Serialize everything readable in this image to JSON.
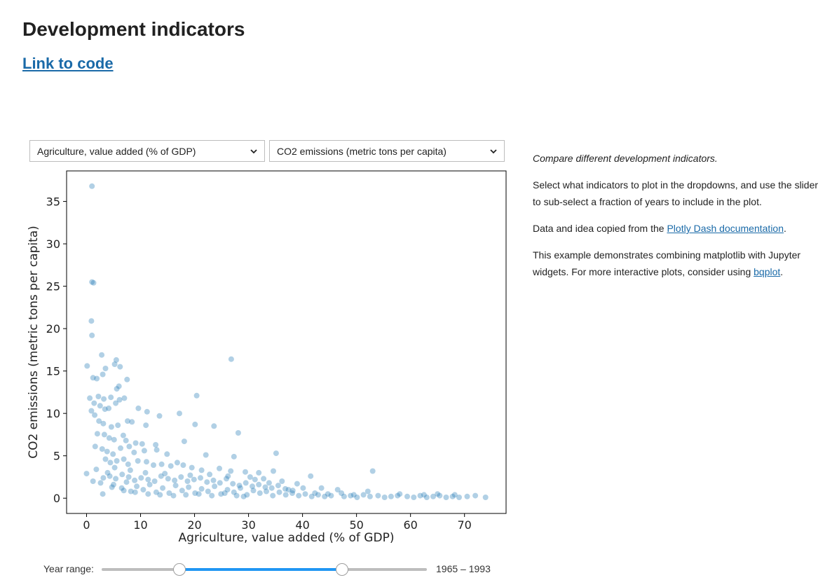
{
  "page": {
    "title": "Development indicators",
    "code_link": "Link to code"
  },
  "controls": {
    "x_indicator": "Agriculture, value added (% of GDP)",
    "y_indicator": "CO2 emissions (metric tons per capita)",
    "year_range_label": "Year range:",
    "year_range_value": "1965 – 1993",
    "year_start_fraction": 0.24,
    "year_end_fraction": 0.74
  },
  "sidebar": {
    "intro": "Compare different development indicators.",
    "p1": "Select what indicators to plot in the dropdowns, and use the slider to sub-select a fraction of years to include in the plot.",
    "p2_prefix": "Data and idea copied from the ",
    "p2_link": "Plotly Dash documentation",
    "p2_suffix": ".",
    "p3_prefix": "This example demonstrates combining matplotlib with Jupyter widgets. For more interactive plots, consider using ",
    "p3_link": "bqplot",
    "p3_suffix": "."
  },
  "chart_data": {
    "type": "scatter",
    "xlabel": "Agriculture, value added (% of GDP)",
    "ylabel": "CO2 emissions (metric tons per capita)",
    "xlim": [
      -3.7,
      77.7
    ],
    "ylim": [
      -1.8,
      38.6
    ],
    "xticks": [
      0,
      10,
      20,
      30,
      40,
      50,
      60,
      70
    ],
    "yticks": [
      0,
      5,
      10,
      15,
      20,
      25,
      30,
      35
    ],
    "marker_color": "#1f77b4",
    "marker_alpha": 0.35,
    "grid": false,
    "points": [
      [
        1.0,
        36.8
      ],
      [
        1.0,
        25.5
      ],
      [
        1.3,
        25.4
      ],
      [
        0.9,
        20.9
      ],
      [
        1.0,
        19.2
      ],
      [
        0.1,
        15.6
      ],
      [
        2.8,
        16.9
      ],
      [
        5.5,
        16.3
      ],
      [
        5.2,
        15.8
      ],
      [
        6.2,
        15.5
      ],
      [
        3.5,
        15.3
      ],
      [
        1.2,
        14.2
      ],
      [
        1.9,
        14.1
      ],
      [
        3.0,
        14.6
      ],
      [
        7.5,
        14.0
      ],
      [
        6.0,
        13.2
      ],
      [
        5.6,
        12.9
      ],
      [
        20.4,
        12.1
      ],
      [
        26.8,
        16.4
      ],
      [
        0.6,
        11.8
      ],
      [
        1.4,
        11.2
      ],
      [
        2.2,
        12.0
      ],
      [
        3.2,
        11.7
      ],
      [
        4.5,
        11.9
      ],
      [
        6.1,
        11.6
      ],
      [
        7.0,
        11.8
      ],
      [
        5.4,
        11.2
      ],
      [
        2.5,
        10.9
      ],
      [
        3.4,
        10.5
      ],
      [
        0.9,
        10.3
      ],
      [
        1.5,
        9.8
      ],
      [
        4.1,
        10.6
      ],
      [
        9.6,
        10.6
      ],
      [
        11.2,
        10.2
      ],
      [
        13.5,
        9.7
      ],
      [
        17.2,
        10.0
      ],
      [
        2.3,
        9.1
      ],
      [
        3.1,
        8.8
      ],
      [
        4.6,
        8.4
      ],
      [
        5.8,
        8.6
      ],
      [
        7.6,
        9.1
      ],
      [
        8.4,
        9.0
      ],
      [
        11.0,
        8.6
      ],
      [
        20.1,
        8.7
      ],
      [
        23.6,
        8.5
      ],
      [
        28.1,
        7.7
      ],
      [
        2.0,
        7.6
      ],
      [
        3.3,
        7.5
      ],
      [
        4.2,
        7.1
      ],
      [
        5.1,
        6.9
      ],
      [
        6.8,
        7.4
      ],
      [
        7.3,
        6.8
      ],
      [
        9.1,
        6.5
      ],
      [
        10.3,
        6.4
      ],
      [
        12.8,
        6.3
      ],
      [
        18.1,
        6.7
      ],
      [
        1.6,
        6.1
      ],
      [
        2.9,
        5.8
      ],
      [
        3.8,
        5.5
      ],
      [
        4.9,
        5.2
      ],
      [
        6.3,
        5.9
      ],
      [
        7.9,
        6.1
      ],
      [
        8.8,
        5.4
      ],
      [
        10.7,
        5.6
      ],
      [
        13.0,
        5.7
      ],
      [
        14.9,
        5.2
      ],
      [
        22.1,
        5.1
      ],
      [
        27.3,
        4.9
      ],
      [
        35.1,
        5.3
      ],
      [
        3.5,
        4.6
      ],
      [
        4.4,
        4.2
      ],
      [
        5.6,
        4.4
      ],
      [
        6.9,
        4.6
      ],
      [
        7.7,
        4.0
      ],
      [
        9.5,
        4.4
      ],
      [
        11.1,
        4.3
      ],
      [
        12.4,
        3.9
      ],
      [
        13.9,
        4.0
      ],
      [
        15.6,
        3.8
      ],
      [
        16.8,
        4.2
      ],
      [
        17.9,
        3.9
      ],
      [
        19.5,
        3.6
      ],
      [
        21.3,
        3.3
      ],
      [
        24.6,
        3.5
      ],
      [
        26.7,
        3.2
      ],
      [
        29.4,
        3.1
      ],
      [
        31.9,
        3.0
      ],
      [
        34.6,
        3.2
      ],
      [
        41.5,
        2.6
      ],
      [
        53.0,
        3.2
      ],
      [
        3.1,
        2.4
      ],
      [
        4.3,
        2.6
      ],
      [
        5.4,
        2.3
      ],
      [
        6.6,
        2.8
      ],
      [
        7.8,
        2.5
      ],
      [
        8.9,
        2.1
      ],
      [
        10.1,
        2.4
      ],
      [
        11.4,
        2.2
      ],
      [
        12.6,
        2.0
      ],
      [
        13.8,
        2.6
      ],
      [
        15.1,
        2.3
      ],
      [
        16.3,
        2.1
      ],
      [
        17.5,
        2.5
      ],
      [
        18.7,
        2.0
      ],
      [
        19.9,
        2.2
      ],
      [
        21.1,
        2.4
      ],
      [
        22.3,
        1.9
      ],
      [
        23.5,
        2.1
      ],
      [
        24.7,
        1.8
      ],
      [
        25.9,
        2.3
      ],
      [
        27.1,
        1.7
      ],
      [
        28.3,
        1.5
      ],
      [
        29.5,
        1.8
      ],
      [
        30.7,
        1.4
      ],
      [
        31.9,
        1.6
      ],
      [
        33.1,
        1.3
      ],
      [
        34.3,
        1.2
      ],
      [
        35.5,
        1.5
      ],
      [
        36.8,
        1.1
      ],
      [
        38.2,
        0.9
      ],
      [
        0.0,
        2.9
      ],
      [
        1.2,
        2.0
      ],
      [
        3.0,
        0.5
      ],
      [
        5.0,
        1.6
      ],
      [
        6.5,
        1.2
      ],
      [
        7.4,
        1.9
      ],
      [
        8.2,
        0.8
      ],
      [
        9.3,
        1.4
      ],
      [
        10.5,
        1.0
      ],
      [
        11.7,
        1.6
      ],
      [
        12.9,
        0.7
      ],
      [
        14.1,
        1.2
      ],
      [
        15.3,
        0.6
      ],
      [
        16.5,
        1.5
      ],
      [
        17.7,
        0.9
      ],
      [
        18.9,
        1.3
      ],
      [
        20.1,
        0.6
      ],
      [
        21.3,
        1.1
      ],
      [
        22.5,
        0.8
      ],
      [
        23.7,
        1.4
      ],
      [
        24.9,
        0.5
      ],
      [
        26.1,
        1.0
      ],
      [
        27.3,
        0.7
      ],
      [
        28.5,
        1.2
      ],
      [
        29.7,
        0.4
      ],
      [
        30.9,
        0.9
      ],
      [
        32.1,
        0.6
      ],
      [
        33.3,
        0.8
      ],
      [
        34.5,
        0.3
      ],
      [
        35.7,
        0.7
      ],
      [
        36.9,
        0.4
      ],
      [
        38.1,
        0.6
      ],
      [
        39.3,
        0.3
      ],
      [
        40.5,
        0.5
      ],
      [
        41.7,
        0.2
      ],
      [
        42.9,
        0.4
      ],
      [
        44.1,
        0.2
      ],
      [
        45.3,
        0.3
      ],
      [
        46.5,
        1.0
      ],
      [
        47.7,
        0.2
      ],
      [
        48.9,
        0.3
      ],
      [
        50.1,
        0.1
      ],
      [
        51.3,
        0.4
      ],
      [
        52.5,
        0.2
      ],
      [
        54.0,
        0.3
      ],
      [
        55.2,
        0.1
      ],
      [
        56.4,
        0.2
      ],
      [
        57.6,
        0.3
      ],
      [
        59.4,
        0.2
      ],
      [
        60.6,
        0.1
      ],
      [
        61.8,
        0.3
      ],
      [
        63.0,
        0.1
      ],
      [
        64.2,
        0.2
      ],
      [
        65.4,
        0.3
      ],
      [
        66.6,
        0.1
      ],
      [
        67.8,
        0.2
      ],
      [
        69.0,
        0.1
      ],
      [
        70.5,
        0.2
      ],
      [
        73.9,
        0.1
      ],
      [
        52.1,
        0.8
      ],
      [
        42.3,
        0.6
      ],
      [
        44.7,
        0.5
      ],
      [
        40.1,
        1.2
      ],
      [
        37.4,
        1.0
      ],
      [
        33.8,
        1.8
      ],
      [
        31.2,
        2.2
      ],
      [
        29.1,
        0.2
      ],
      [
        27.8,
        0.3
      ],
      [
        25.6,
        0.6
      ],
      [
        23.2,
        0.3
      ],
      [
        20.8,
        0.5
      ],
      [
        18.4,
        0.4
      ],
      [
        16.1,
        0.3
      ],
      [
        13.6,
        0.4
      ],
      [
        11.4,
        0.5
      ],
      [
        9.0,
        0.7
      ],
      [
        6.9,
        0.9
      ],
      [
        4.7,
        1.3
      ],
      [
        2.6,
        1.8
      ],
      [
        1.8,
        3.4
      ],
      [
        3.9,
        3.0
      ],
      [
        5.2,
        3.6
      ],
      [
        8.1,
        3.3
      ],
      [
        10.9,
        3.0
      ],
      [
        14.5,
        2.9
      ],
      [
        19.2,
        2.7
      ],
      [
        22.8,
        2.8
      ],
      [
        26.2,
        2.6
      ],
      [
        30.3,
        2.5
      ],
      [
        32.8,
        2.3
      ],
      [
        36.2,
        2.0
      ],
      [
        39.0,
        1.7
      ],
      [
        43.5,
        1.2
      ],
      [
        47.2,
        0.6
      ],
      [
        49.5,
        0.4
      ],
      [
        58.0,
        0.5
      ],
      [
        62.5,
        0.4
      ],
      [
        65.0,
        0.5
      ],
      [
        68.2,
        0.4
      ],
      [
        72.0,
        0.3
      ]
    ]
  }
}
